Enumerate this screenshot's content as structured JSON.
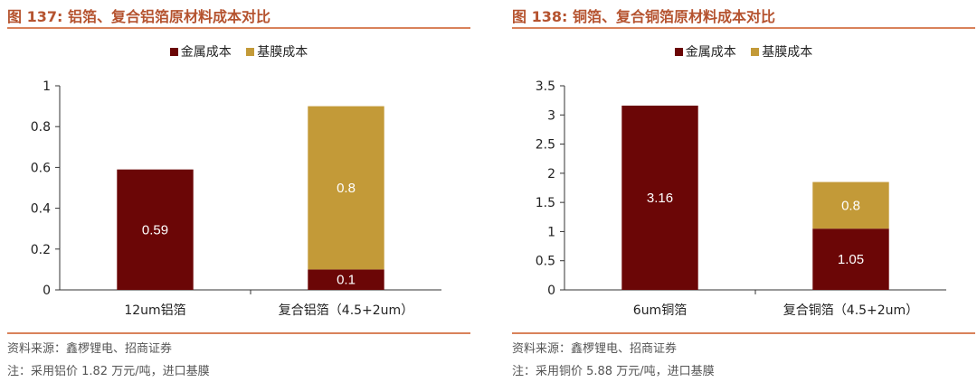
{
  "colors": {
    "metal": "#6b0606",
    "film": "#c39a38",
    "title": "#b5532f",
    "rule": "#d9825a"
  },
  "legend": {
    "metal": "金属成本",
    "film": "基膜成本"
  },
  "panels": [
    {
      "title": "图 137: 铝箔、复合铝箔原材料成本对比",
      "source": "资料来源：鑫椤锂电、招商证券",
      "note": "注：采用铝价 1.82 万元/吨，进口基膜"
    },
    {
      "title": "图 138: 铜箔、复合铜箔原材料成本对比",
      "source": "资料来源：鑫椤锂电、招商证券",
      "note": "注：采用铜价 5.88 万元/吨，进口基膜"
    }
  ],
  "chart_data": [
    {
      "type": "bar",
      "stacked": true,
      "categories": [
        "12um铝箔",
        "复合铝箔（4.5+2um）"
      ],
      "series": [
        {
          "name": "金属成本",
          "values": [
            0.59,
            0.1
          ]
        },
        {
          "name": "基膜成本",
          "values": [
            0,
            0.8
          ]
        }
      ],
      "data_labels": [
        [
          "0.59",
          "0.1"
        ],
        [
          null,
          "0.8"
        ]
      ],
      "yticks": [
        "0",
        "0.2",
        "0.4",
        "0.6",
        "0.8",
        "1"
      ],
      "ylim": [
        0,
        1
      ],
      "grid": false,
      "legend_position": "top"
    },
    {
      "type": "bar",
      "stacked": true,
      "categories": [
        "6um铜箔",
        "复合铜箔（4.5+2um）"
      ],
      "series": [
        {
          "name": "金属成本",
          "values": [
            3.16,
            1.05
          ]
        },
        {
          "name": "基膜成本",
          "values": [
            0,
            0.8
          ]
        }
      ],
      "data_labels": [
        [
          "3.16",
          "1.05"
        ],
        [
          null,
          "0.8"
        ]
      ],
      "yticks": [
        "0",
        "0.5",
        "1",
        "1.5",
        "2",
        "2.5",
        "3",
        "3.5"
      ],
      "ylim": [
        0,
        3.5
      ],
      "grid": false,
      "legend_position": "top"
    }
  ]
}
